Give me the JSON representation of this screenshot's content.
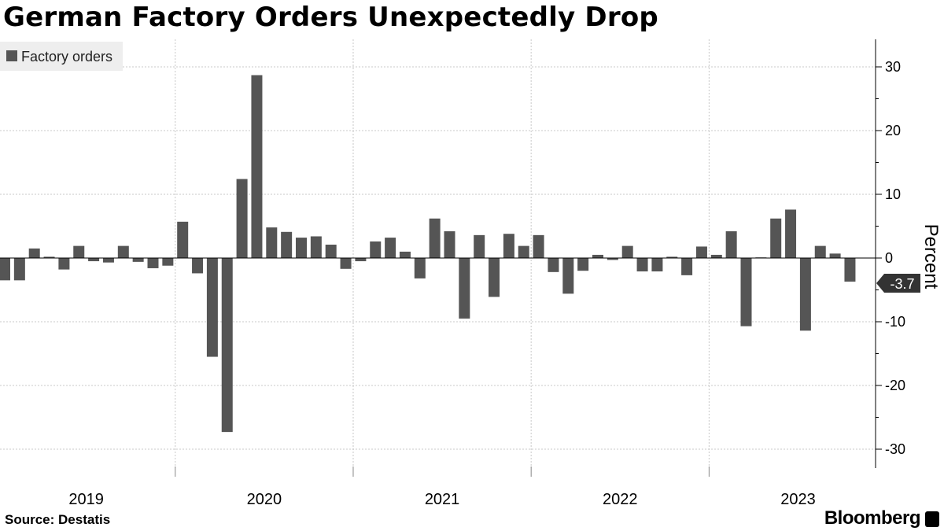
{
  "title": "German Factory Orders Unexpectedly Drop",
  "source": "Source:  Destatis",
  "brand": "Bloomberg",
  "colors": {
    "bar": "#555555",
    "grid": "#c8c8c8",
    "legend_bg": "#eeeeee",
    "label_bg": "#333333"
  },
  "chart_data": {
    "type": "bar",
    "series": [
      {
        "name": "Factory orders",
        "values": [
          -3.5,
          -3.5,
          1.5,
          0.2,
          -1.8,
          1.9,
          -0.5,
          -0.7,
          1.9,
          -0.6,
          -1.6,
          -1.2,
          5.7,
          -2.4,
          -15.5,
          -27.3,
          12.4,
          28.7,
          4.8,
          4.1,
          3.2,
          3.4,
          2.1,
          -1.7,
          -0.5,
          2.6,
          3.2,
          1.0,
          -3.2,
          6.2,
          4.2,
          -9.5,
          3.6,
          -6.1,
          3.8,
          1.9,
          3.6,
          -2.2,
          -5.6,
          -2.0,
          0.5,
          -0.3,
          1.9,
          -2.1,
          -2.1,
          0.2,
          -2.7,
          1.8,
          0.5,
          4.2,
          -10.7,
          0.1,
          6.2,
          7.6,
          -11.4,
          1.9,
          0.7,
          -3.7
        ]
      }
    ],
    "x_start": "2019-01",
    "frequency": "monthly",
    "xtick_labels": [
      "2019",
      "2020",
      "2021",
      "2022",
      "2023"
    ],
    "ylabel": "Percent",
    "ylim": [
      -33,
      35
    ],
    "yticks": [
      30,
      20,
      10,
      0,
      -10,
      -20,
      -30
    ],
    "ytick_labels": [
      "30",
      "20",
      "10",
      "0",
      "-10",
      "-20",
      "-30"
    ],
    "last_value_label": "-3.7",
    "legend": "top-left",
    "grid": true,
    "y_axis_side": "right"
  }
}
